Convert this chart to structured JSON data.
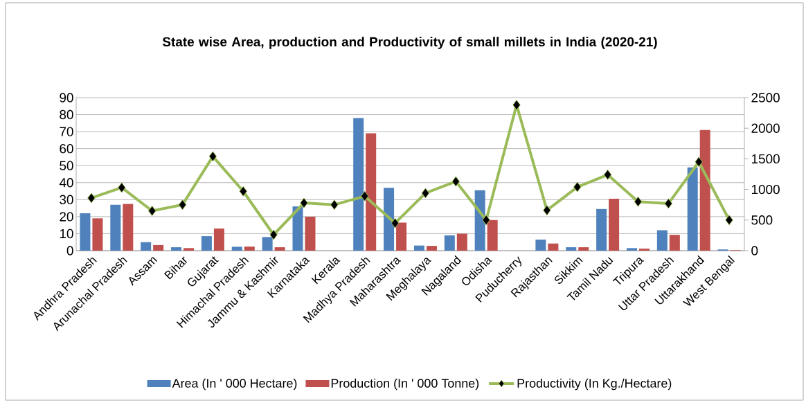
{
  "chart_data": {
    "type": "bar",
    "title": "State wise Area, production and Productivity of small millets in India (2020-21)",
    "categories": [
      "Andhra Pradesh",
      "Arunachal Pradesh",
      "Assam",
      "Bihar",
      "Gujarat",
      "Himachal Pradesh",
      "Jammu & Kashmir",
      "Karnataka",
      "Kerala",
      "Madhya Pradesh",
      "Maharashtra",
      "Meghalaya",
      "Nagaland",
      "Odisha",
      "Puducherry",
      "Rajasthan",
      "Sikkim",
      "Tamil Nadu",
      "Tripura",
      "Uttar Pradesh",
      "Uttarakhand",
      "West Bengal"
    ],
    "series": [
      {
        "name": "Area (In ' 000 Hectare)",
        "color": "#4f81bd",
        "values": [
          22,
          27,
          5,
          2,
          8.5,
          2.3,
          8,
          26,
          0,
          78,
          37,
          3,
          9,
          35.5,
          0,
          6.5,
          2,
          24.5,
          1.5,
          12,
          49,
          0.7
        ]
      },
      {
        "name": "Production (In ' 000 Tonne)",
        "color": "#c0504d",
        "values": [
          19,
          27.5,
          3.3,
          1.5,
          13,
          2.4,
          2,
          20,
          0,
          69,
          16.5,
          2.8,
          10,
          18,
          0,
          4.2,
          2,
          30.5,
          1.2,
          9.3,
          71,
          0.3
        ]
      },
      {
        "name": "Productivity (In Kg./Hectare)",
        "color": "#9bbb59",
        "type": "line",
        "axis": "y2",
        "marker": "diamond",
        "values": [
          860,
          1030,
          650,
          750,
          1540,
          970,
          260,
          780,
          750,
          890,
          450,
          940,
          1130,
          500,
          2380,
          660,
          1040,
          1240,
          800,
          770,
          1450,
          500
        ]
      }
    ],
    "ylim": [
      0,
      90
    ],
    "yticks": [
      0,
      10,
      20,
      30,
      40,
      50,
      60,
      70,
      80,
      90
    ],
    "y2lim": [
      0,
      2500
    ],
    "y2ticks": [
      0,
      500,
      1000,
      1500,
      2000,
      2500
    ],
    "grid": "y",
    "legend": "bottom"
  }
}
